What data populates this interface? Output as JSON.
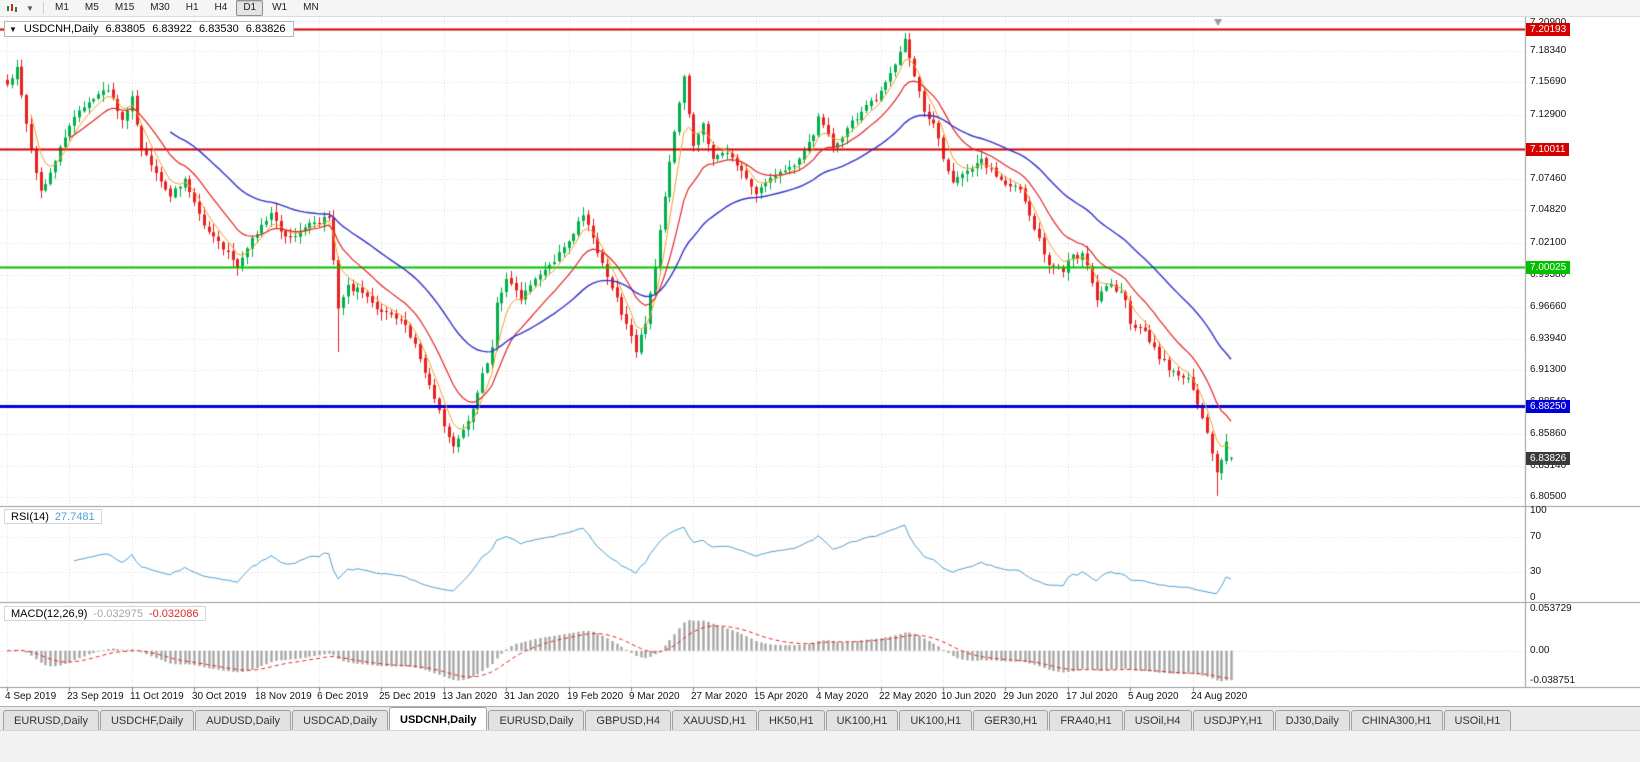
{
  "toolbar": {
    "timeframes": [
      "M1",
      "M5",
      "M15",
      "M30",
      "H1",
      "H4",
      "D1",
      "W1",
      "MN"
    ],
    "active_timeframe": "D1",
    "left_icons": [
      "candlestick-chart-icon",
      "dropdown-caret-icon"
    ]
  },
  "chart": {
    "symbol_label": "USDCNH,Daily",
    "ohlc": {
      "open": "6.83805",
      "high": "6.83922",
      "low": "6.83530",
      "close": "6.83826"
    }
  },
  "chart_data": {
    "type": "candlestick",
    "symbol": "USDCNH",
    "timeframe": "Daily",
    "bars": 256,
    "bars_per_label": 13,
    "up_color": "#00b04c",
    "down_color": "#e82020",
    "price_axis": {
      "max": 7.209,
      "min": 6.805,
      "ticks": [
        "7.20900",
        "7.18340",
        "7.15690",
        "7.12900",
        "7.10140",
        "7.07460",
        "7.04820",
        "7.02100",
        "6.99380",
        "6.96660",
        "6.93940",
        "6.91300",
        "6.88540",
        "6.85860",
        "6.83140",
        "6.80500"
      ]
    },
    "x_labels": [
      "4 Sep 2019",
      "23 Sep 2019",
      "11 Oct 2019",
      "30 Oct 2019",
      "18 Nov 2019",
      "6 Dec 2019",
      "25 Dec 2019",
      "13 Jan 2020",
      "31 Jan 2020",
      "19 Feb 2020",
      "9 Mar 2020",
      "27 Mar 2020",
      "15 Apr 2020",
      "4 May 2020",
      "22 May 2020",
      "10 Jun 2020",
      "29 Jun 2020",
      "17 Jul 2020",
      "5 Aug 2020",
      "24 Aug 2020"
    ],
    "close_waypoints": [
      [
        0,
        7.155
      ],
      [
        2,
        7.17
      ],
      [
        5,
        7.1
      ],
      [
        7,
        7.065
      ],
      [
        10,
        7.09
      ],
      [
        13,
        7.12
      ],
      [
        17,
        7.14
      ],
      [
        21,
        7.15
      ],
      [
        24,
        7.125
      ],
      [
        26,
        7.145
      ],
      [
        28,
        7.1
      ],
      [
        31,
        7.08
      ],
      [
        34,
        7.06
      ],
      [
        37,
        7.075
      ],
      [
        39,
        7.055
      ],
      [
        42,
        7.03
      ],
      [
        45,
        7.015
      ],
      [
        48,
        7.0
      ],
      [
        51,
        7.025
      ],
      [
        53,
        7.036
      ],
      [
        55,
        7.046
      ],
      [
        58,
        7.026
      ],
      [
        61,
        7.031
      ],
      [
        64,
        7.038
      ],
      [
        67,
        7.042
      ],
      [
        69,
        6.965
      ],
      [
        71,
        6.985
      ],
      [
        75,
        6.975
      ],
      [
        78,
        6.962
      ],
      [
        82,
        6.955
      ],
      [
        85,
        6.935
      ],
      [
        88,
        6.9
      ],
      [
        91,
        6.865
      ],
      [
        93,
        6.848
      ],
      [
        95,
        6.862
      ],
      [
        97,
        6.88
      ],
      [
        99,
        6.91
      ],
      [
        101,
        6.932
      ],
      [
        102,
        6.97
      ],
      [
        104,
        6.99
      ],
      [
        107,
        6.972
      ],
      [
        110,
        6.99
      ],
      [
        113,
        7.002
      ],
      [
        117,
        7.022
      ],
      [
        120,
        7.044
      ],
      [
        123,
        7.012
      ],
      [
        126,
        6.982
      ],
      [
        129,
        6.952
      ],
      [
        131,
        6.928
      ],
      [
        133,
        6.952
      ],
      [
        135,
        7.0
      ],
      [
        137,
        7.06
      ],
      [
        139,
        7.115
      ],
      [
        141,
        7.162
      ],
      [
        143,
        7.103
      ],
      [
        145,
        7.122
      ],
      [
        147,
        7.092
      ],
      [
        150,
        7.097
      ],
      [
        153,
        7.082
      ],
      [
        156,
        7.062
      ],
      [
        159,
        7.076
      ],
      [
        162,
        7.082
      ],
      [
        165,
        7.092
      ],
      [
        168,
        7.112
      ],
      [
        169,
        7.128
      ],
      [
        172,
        7.102
      ],
      [
        175,
        7.118
      ],
      [
        178,
        7.132
      ],
      [
        181,
        7.142
      ],
      [
        183,
        7.157
      ],
      [
        185,
        7.172
      ],
      [
        187,
        7.194
      ],
      [
        189,
        7.162
      ],
      [
        191,
        7.132
      ],
      [
        193,
        7.122
      ],
      [
        195,
        7.092
      ],
      [
        197,
        7.072
      ],
      [
        200,
        7.082
      ],
      [
        203,
        7.092
      ],
      [
        206,
        7.077
      ],
      [
        208,
        7.07
      ],
      [
        211,
        7.066
      ],
      [
        214,
        7.032
      ],
      [
        217,
        7.002
      ],
      [
        220,
        6.996
      ],
      [
        221,
        7.006
      ],
      [
        224,
        7.012
      ],
      [
        227,
        6.972
      ],
      [
        230,
        6.986
      ],
      [
        233,
        6.972
      ],
      [
        234,
        6.952
      ],
      [
        237,
        6.946
      ],
      [
        240,
        6.922
      ],
      [
        243,
        6.912
      ],
      [
        246,
        6.906
      ],
      [
        247,
        6.896
      ],
      [
        249,
        6.872
      ],
      [
        251,
        6.842
      ],
      [
        252,
        6.826
      ],
      [
        254,
        6.852
      ],
      [
        255,
        6.83826
      ]
    ],
    "overrides": {
      "last_bar": {
        "open": 6.83805,
        "high": 6.83922,
        "low": 6.8353,
        "close": 6.83826
      },
      "high_points": [
        [
          187,
          7.199
        ],
        [
          2,
          7.176
        ]
      ],
      "low_points": [
        [
          252,
          6.806
        ],
        [
          69,
          6.928
        ],
        [
          93,
          6.842
        ]
      ]
    },
    "levels": [
      {
        "label": "7.20193",
        "value": 7.20193,
        "color": "#d40000",
        "width": 2
      },
      {
        "label": "7.10011",
        "value": 7.10011,
        "color": "#d40000",
        "width": 2
      },
      {
        "label": "7.00025",
        "value": 7.00025,
        "color": "#00c000",
        "width": 2
      },
      {
        "label": "6.88250",
        "value": 6.8825,
        "color": "#0000d8",
        "width": 3
      }
    ],
    "current_price": {
      "label": "6.83826",
      "value": 6.83826,
      "color": "#3a3a3a"
    },
    "moving_averages": [
      {
        "period": 5,
        "color": "#f0a028",
        "width": 1
      },
      {
        "period": 13,
        "color": "#e02828",
        "width": 1.2
      },
      {
        "period": 34,
        "color": "#3333cc",
        "width": 1.4
      }
    ],
    "rsi": {
      "name": "RSI(14)",
      "period": 14,
      "value": "27.7481",
      "color": "#4e9fd4",
      "levels": [
        70,
        30
      ],
      "range": [
        0,
        100
      ],
      "ticks": [
        "100",
        "70",
        "30",
        "0"
      ]
    },
    "macd": {
      "name": "MACD(12,26,9)",
      "fast": 12,
      "slow": 26,
      "signal_period": 9,
      "value_main": "-0.032975",
      "value_signal": "-0.032086",
      "histogram_color": "#a6a6a6",
      "signal_color": "#e02828",
      "axis_max": 0.053729,
      "axis_min": -0.038751,
      "ticks": [
        "0.053729",
        "0.00",
        "-0.038751"
      ]
    }
  },
  "tabs": {
    "active_index": 4,
    "items": [
      "EURUSD,Daily",
      "USDCHF,Daily",
      "AUDUSD,Daily",
      "USDCAD,Daily",
      "USDCNH,Daily",
      "EURUSD,Daily",
      "GBPUSD,H4",
      "XAUUSD,H1",
      "HK50,H1",
      "UK100,H1",
      "UK100,H1",
      "GER30,H1",
      "FRA40,H1",
      "USOil,H4",
      "USDJPY,H1",
      "DJ30,Daily",
      "CHINA300,H1",
      "USOil,H1"
    ]
  }
}
